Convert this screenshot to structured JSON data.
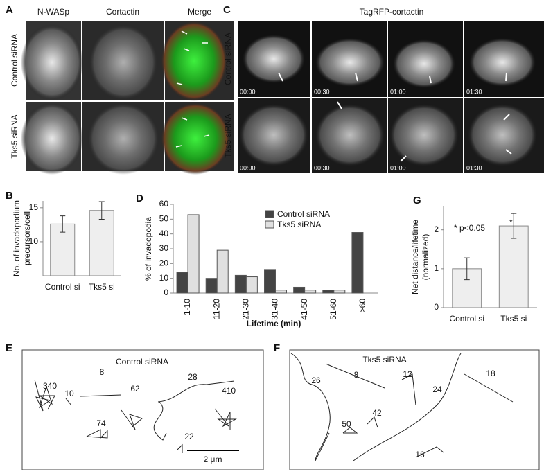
{
  "panel_a": {
    "letter": "A",
    "columns": [
      "N-WASp",
      "Cortactin",
      "Merge"
    ],
    "rows": [
      "Control siRNA",
      "Tks5 siRNA"
    ]
  },
  "panel_c": {
    "letter": "C",
    "title": "TagRFP-cortactin",
    "rows": [
      "Control siRNA",
      "Tks5 siRNA"
    ],
    "timestamps": [
      "00:00",
      "00:30",
      "01:00",
      "01:30"
    ]
  },
  "chart_data": [
    {
      "type": "bar",
      "letter": "B",
      "ylabel": [
        "No. of invadopodium",
        "precursors/cell"
      ],
      "categories": [
        "Control si",
        "Tks5 si"
      ],
      "values": [
        12.6,
        14.6
      ],
      "errors": [
        1.2,
        1.3
      ],
      "color": "#eeeeee",
      "ylim": [
        5,
        16
      ],
      "yticks": [
        10,
        15
      ]
    },
    {
      "type": "grouped-bar",
      "letter": "D",
      "ylabel": "% of invadopodia",
      "xlabel": "Lifetime (min)",
      "categories": [
        "1-10",
        "11-20",
        "21-30",
        "31-40",
        "41-50",
        "51-60",
        ">60"
      ],
      "series": [
        {
          "name": "Control siRNA",
          "color": "#444444",
          "values": [
            14,
            10,
            12,
            16,
            4,
            2,
            41
          ]
        },
        {
          "name": "Tks5 siRNA",
          "color": "#e0e0e0",
          "values": [
            53,
            29,
            11,
            2,
            2,
            2,
            0
          ]
        }
      ],
      "ylim": [
        0,
        60
      ],
      "yticks": [
        0,
        10,
        20,
        30,
        40,
        50,
        60
      ]
    },
    {
      "type": "bar",
      "letter": "G",
      "ylabel": [
        "Net distance/lifetime",
        "(normalized)"
      ],
      "annotations": [
        "* p<0.05",
        "*"
      ],
      "categories": [
        "Control si",
        "Tks5 si"
      ],
      "values": [
        1.0,
        2.1
      ],
      "errors": [
        0.28,
        0.32
      ],
      "color": "#eeeeee",
      "ylim": [
        0,
        2.6
      ],
      "yticks": [
        0,
        1,
        2
      ]
    }
  ],
  "panel_e": {
    "letter": "E",
    "title": "Control siRNA",
    "track_labels": [
      "340",
      "8",
      "10",
      "62",
      "28",
      "74",
      "410",
      "22"
    ],
    "scale_bar": "2 μm"
  },
  "panel_f": {
    "letter": "F",
    "title": "Tks5 siRNA",
    "track_labels": [
      "26",
      "8",
      "12",
      "24",
      "18",
      "50",
      "42",
      "16"
    ]
  }
}
